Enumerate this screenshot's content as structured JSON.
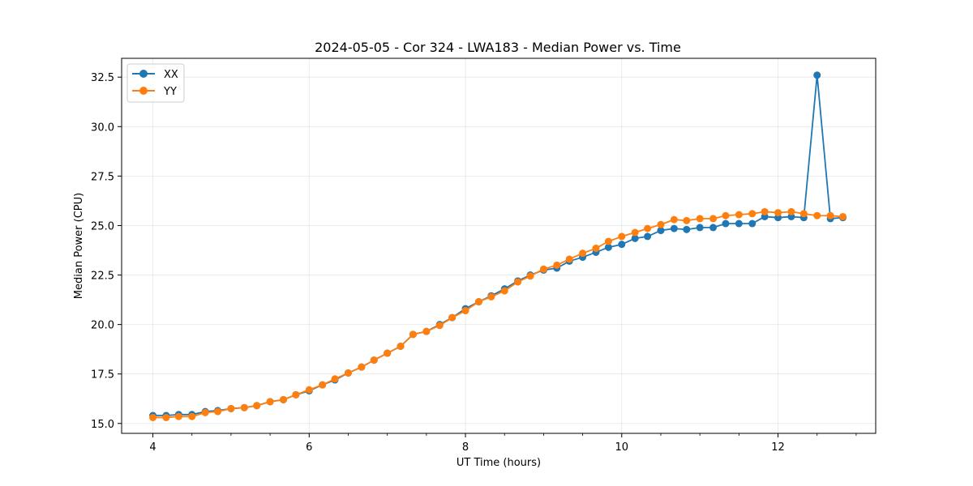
{
  "chart_data": {
    "type": "line",
    "title": "2024-05-05 - Cor 324 - LWA183 - Median Power vs. Time",
    "xlabel": "UT Time (hours)",
    "ylabel": "Median Power (CPU)",
    "xlim": [
      3.6,
      13.25
    ],
    "ylim": [
      14.5,
      33.45
    ],
    "xticks": [
      4,
      6,
      8,
      10,
      12
    ],
    "yticks": [
      15.0,
      17.5,
      20.0,
      22.5,
      25.0,
      27.5,
      30.0,
      32.5
    ],
    "xtick_labels": [
      "4",
      "6",
      "8",
      "10",
      "12"
    ],
    "ytick_labels": [
      "15.0",
      "17.5",
      "20.0",
      "22.5",
      "25.0",
      "27.5",
      "30.0",
      "32.5"
    ],
    "grid": true,
    "legend_position": "top-left",
    "x": [
      4.0,
      4.17,
      4.33,
      4.5,
      4.67,
      4.83,
      5.0,
      5.17,
      5.33,
      5.5,
      5.67,
      5.83,
      6.0,
      6.17,
      6.33,
      6.5,
      6.67,
      6.83,
      7.0,
      7.17,
      7.33,
      7.5,
      7.67,
      7.83,
      8.0,
      8.17,
      8.33,
      8.5,
      8.67,
      8.83,
      9.0,
      9.17,
      9.33,
      9.5,
      9.67,
      9.83,
      10.0,
      10.17,
      10.33,
      10.5,
      10.67,
      10.83,
      11.0,
      11.17,
      11.33,
      11.5,
      11.67,
      11.83,
      12.0,
      12.17,
      12.33,
      12.5,
      12.67,
      12.83
    ],
    "series": [
      {
        "name": "XX",
        "color": "#1f77b4",
        "values": [
          15.4,
          15.4,
          15.45,
          15.45,
          15.6,
          15.65,
          15.75,
          15.8,
          15.9,
          16.1,
          16.2,
          16.45,
          16.65,
          16.95,
          17.2,
          17.55,
          17.85,
          18.2,
          18.55,
          18.9,
          19.5,
          19.65,
          20.0,
          20.35,
          20.8,
          21.15,
          21.45,
          21.8,
          22.2,
          22.5,
          22.75,
          22.85,
          23.2,
          23.4,
          23.65,
          23.9,
          24.05,
          24.35,
          24.45,
          24.75,
          24.85,
          24.8,
          24.9,
          24.9,
          25.1,
          25.1,
          25.1,
          25.45,
          25.4,
          25.45,
          25.4,
          32.6,
          25.35,
          25.4
        ]
      },
      {
        "name": "YY",
        "color": "#ff7f0e",
        "values": [
          15.3,
          15.3,
          15.35,
          15.35,
          15.55,
          15.6,
          15.75,
          15.8,
          15.9,
          16.1,
          16.2,
          16.45,
          16.7,
          16.95,
          17.25,
          17.55,
          17.85,
          18.2,
          18.55,
          18.9,
          19.5,
          19.65,
          19.95,
          20.35,
          20.7,
          21.15,
          21.4,
          21.7,
          22.15,
          22.45,
          22.8,
          23.0,
          23.3,
          23.6,
          23.85,
          24.2,
          24.45,
          24.65,
          24.85,
          25.05,
          25.3,
          25.25,
          25.35,
          25.35,
          25.5,
          25.55,
          25.6,
          25.7,
          25.65,
          25.7,
          25.6,
          25.5,
          25.5,
          25.45
        ]
      }
    ]
  }
}
